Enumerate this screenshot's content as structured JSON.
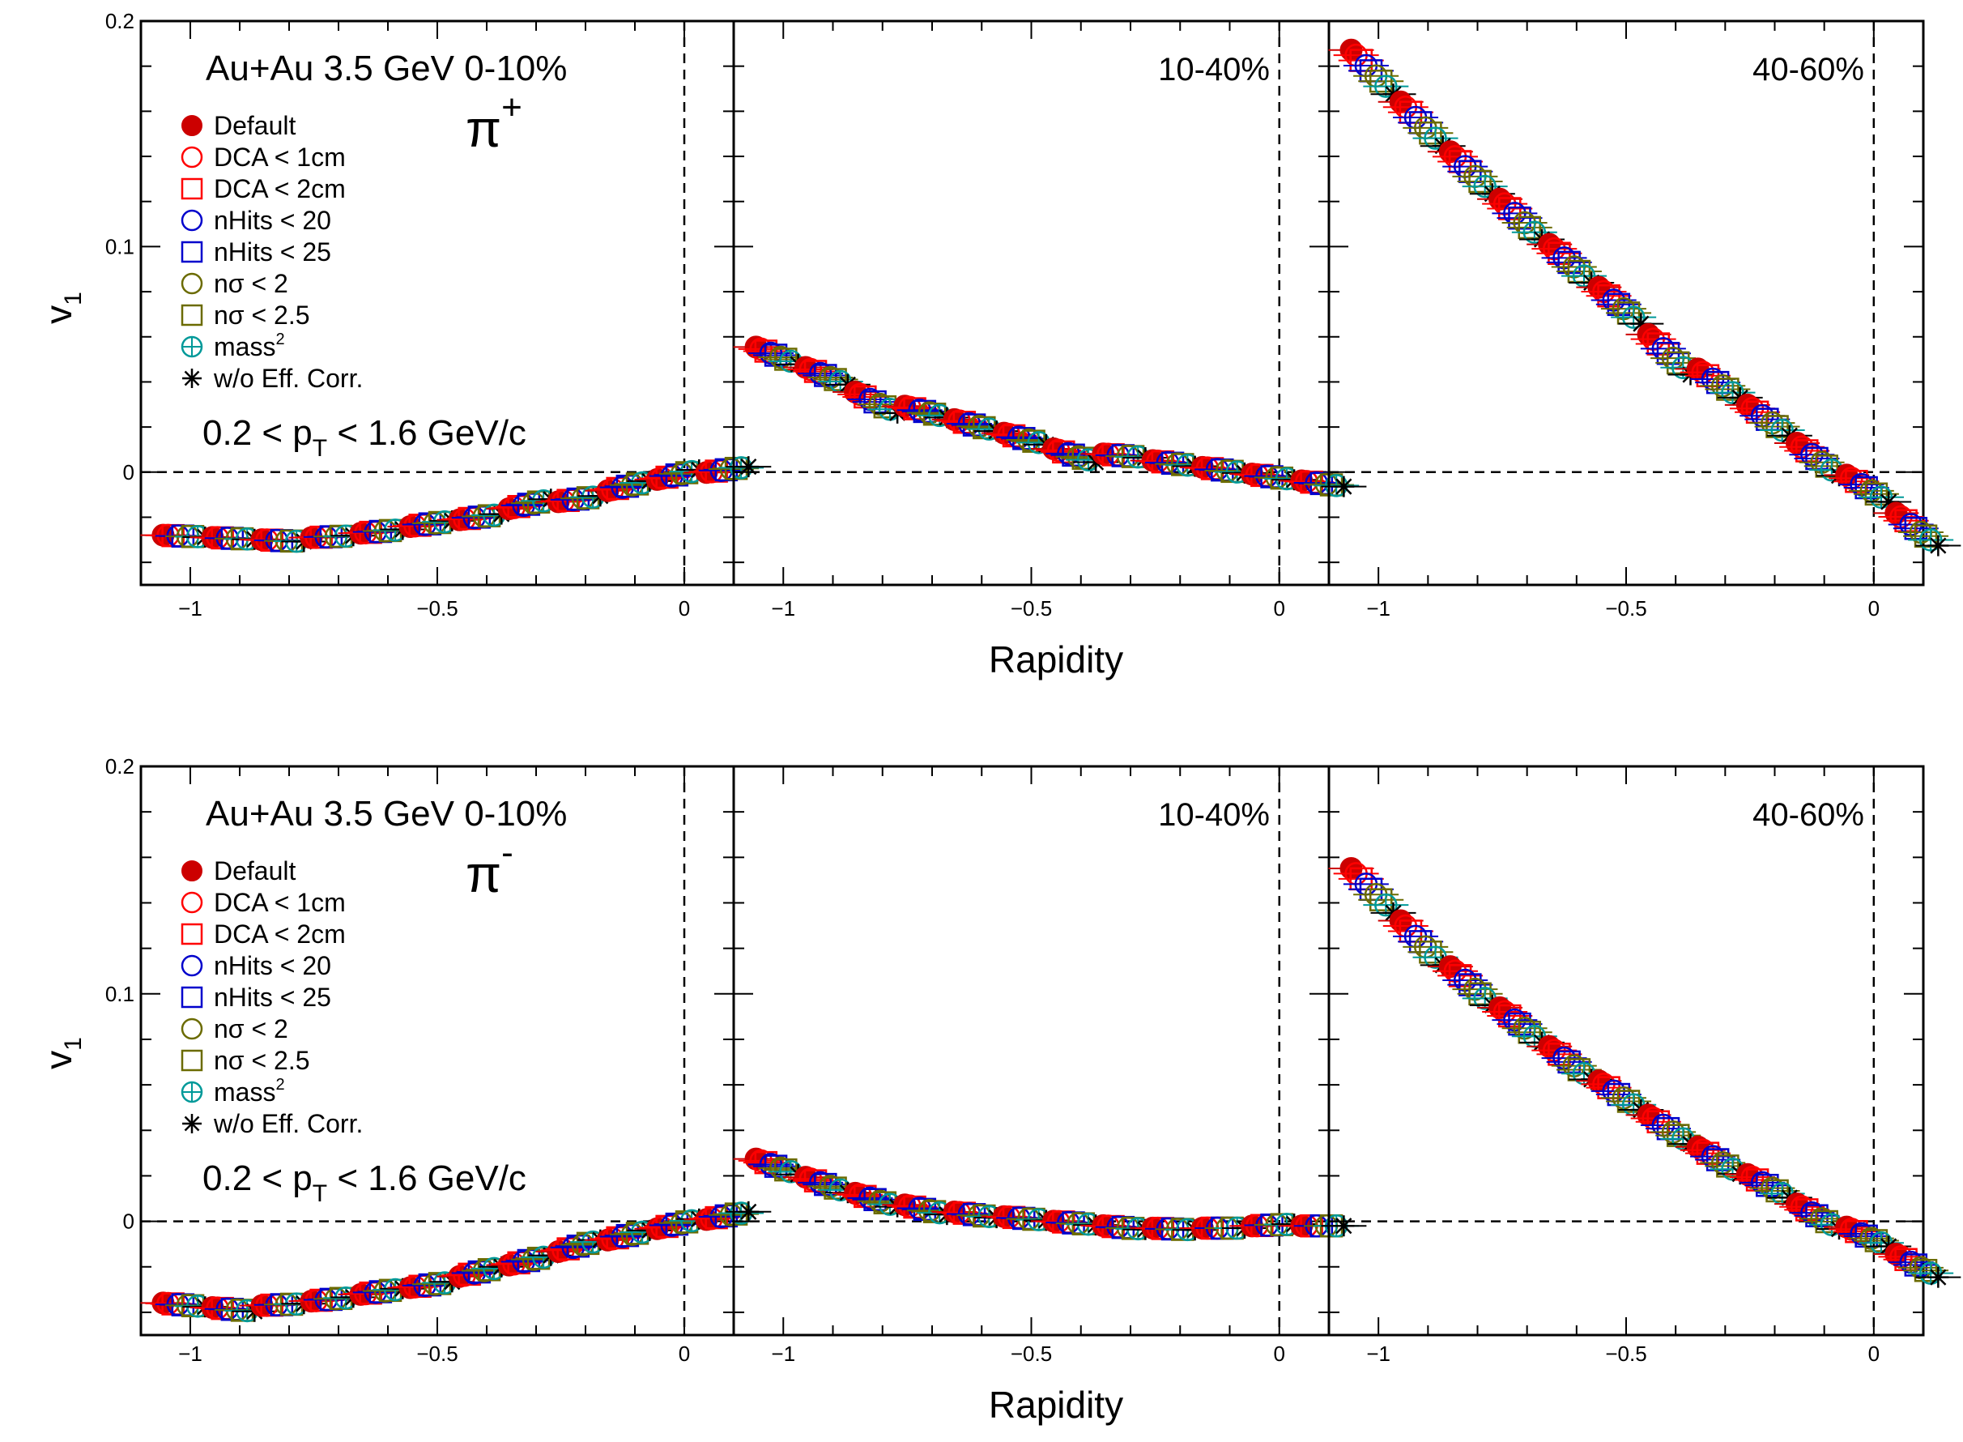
{
  "figure": {
    "x_axis_label": "Rapidity",
    "y_axis_label": "v",
    "y_axis_label_sub": "1",
    "system_label": "Au+Au 3.5 GeV",
    "pt_cut": {
      "pre": "0.2 < p",
      "sub": "T",
      "post": " < 1.6 GeV/c"
    }
  },
  "legend": [
    {
      "label": "Default",
      "marker": "filled-circle",
      "color": "#cc0000"
    },
    {
      "label": "DCA < 1cm",
      "marker": "open-circle",
      "color": "#ff0000"
    },
    {
      "label": "DCA < 2cm",
      "marker": "open-square",
      "color": "#ff0000"
    },
    {
      "label": "nHits < 20",
      "marker": "open-circle",
      "color": "#0000cc"
    },
    {
      "label": "nHits < 25",
      "marker": "open-square",
      "color": "#0000cc"
    },
    {
      "label": "nσ < 2",
      "marker": "open-circle",
      "color": "#6b6b00"
    },
    {
      "label": "nσ < 2.5",
      "marker": "open-square",
      "color": "#6b6b00"
    },
    {
      "label": "mass",
      "label_sup": "2",
      "marker": "cross-circle",
      "color": "#009999"
    },
    {
      "label": "w/o Eff. Corr.",
      "marker": "star",
      "color": "#000000"
    }
  ],
  "chart_data": [
    {
      "type": "scatter",
      "particle": "π",
      "particle_sup": "+",
      "centrality": [
        "0-10%",
        "10-40%",
        "40-60%"
      ],
      "xlabel": "Rapidity",
      "ylabel": "v1",
      "xlim": [
        -1.1,
        0.1
      ],
      "ylim": [
        -0.05,
        0.2
      ],
      "x_ticks": [
        "−1",
        "−0.5",
        "0"
      ],
      "y_ticks": [
        "0",
        "0.1",
        "0.2"
      ],
      "series": [
        {
          "x": [
            -1.05,
            -0.95,
            -0.85,
            -0.75,
            -0.65,
            -0.55,
            -0.45,
            -0.35,
            -0.25,
            -0.15,
            -0.05,
            0.05
          ],
          "y": [
            -0.028,
            -0.029,
            -0.03,
            -0.029,
            -0.027,
            -0.024,
            -0.021,
            -0.016,
            -0.013,
            -0.008,
            -0.003,
            0.0
          ]
        },
        {
          "x": [
            -1.05,
            -0.95,
            -0.85,
            -0.75,
            -0.65,
            -0.55,
            -0.45,
            -0.35,
            -0.25,
            -0.15,
            -0.05,
            0.05
          ],
          "y": [
            0.055,
            0.046,
            0.035,
            0.029,
            0.023,
            0.017,
            0.01,
            0.008,
            0.005,
            0.002,
            -0.001,
            -0.004
          ]
        },
        {
          "x": [
            -1.05,
            -0.95,
            -0.85,
            -0.75,
            -0.65,
            -0.55,
            -0.45,
            -0.35,
            -0.25,
            -0.15,
            -0.05,
            0.05
          ],
          "y": [
            0.186,
            0.163,
            0.141,
            0.12,
            0.1,
            0.081,
            0.06,
            0.045,
            0.029,
            0.012,
            -0.002,
            -0.019
          ]
        }
      ]
    },
    {
      "type": "scatter",
      "particle": "π",
      "particle_sup": "-",
      "centrality": [
        "0-10%",
        "10-40%",
        "40-60%"
      ],
      "xlabel": "Rapidity",
      "ylabel": "v1",
      "xlim": [
        -1.1,
        0.1
      ],
      "ylim": [
        -0.05,
        0.2
      ],
      "x_ticks": [
        "−1",
        "−0.5",
        "0"
      ],
      "y_ticks": [
        "0",
        "0.1",
        "0.2"
      ],
      "series": [
        {
          "x": [
            -1.05,
            -0.95,
            -0.85,
            -0.75,
            -0.65,
            -0.55,
            -0.45,
            -0.35,
            -0.25,
            -0.15,
            -0.05,
            0.05
          ],
          "y": [
            -0.036,
            -0.038,
            -0.037,
            -0.035,
            -0.032,
            -0.029,
            -0.024,
            -0.019,
            -0.013,
            -0.008,
            -0.003,
            0.001
          ]
        },
        {
          "x": [
            -1.05,
            -0.95,
            -0.85,
            -0.75,
            -0.65,
            -0.55,
            -0.45,
            -0.35,
            -0.25,
            -0.15,
            -0.05,
            0.05
          ],
          "y": [
            0.027,
            0.019,
            0.012,
            0.007,
            0.004,
            0.002,
            0.0,
            -0.002,
            -0.003,
            -0.003,
            -0.002,
            -0.002
          ]
        },
        {
          "x": [
            -1.05,
            -0.95,
            -0.85,
            -0.75,
            -0.65,
            -0.55,
            -0.45,
            -0.35,
            -0.25,
            -0.15,
            -0.05,
            0.05
          ],
          "y": [
            0.154,
            0.131,
            0.111,
            0.093,
            0.076,
            0.061,
            0.046,
            0.032,
            0.02,
            0.007,
            -0.003,
            -0.015
          ]
        }
      ]
    }
  ]
}
